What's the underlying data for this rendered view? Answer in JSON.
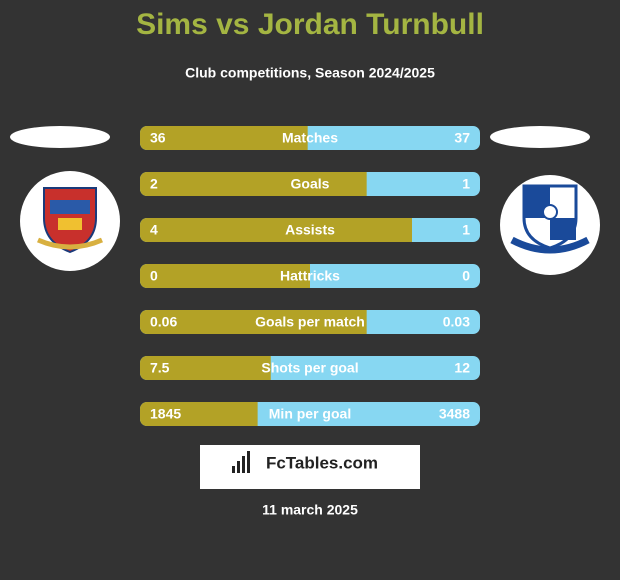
{
  "header": {
    "title": "Sims vs Jordan Turnbull",
    "subtitle": "Club competitions, Season 2024/2025"
  },
  "rows": [
    {
      "label": "Matches",
      "left": 36,
      "right": 37
    },
    {
      "label": "Goals",
      "left": 2,
      "right": 1
    },
    {
      "label": "Assists",
      "left": 4,
      "right": 1
    },
    {
      "label": "Hattricks",
      "left": 0,
      "right": 0
    },
    {
      "label": "Goals per match",
      "left": 0.06,
      "right": 0.03
    },
    {
      "label": "Shots per goal",
      "left": 7.5,
      "right": 12
    },
    {
      "label": "Min per goal",
      "left": 1845,
      "right": 3488
    }
  ],
  "brand": "FcTables.com",
  "date": "11 march 2025"
}
